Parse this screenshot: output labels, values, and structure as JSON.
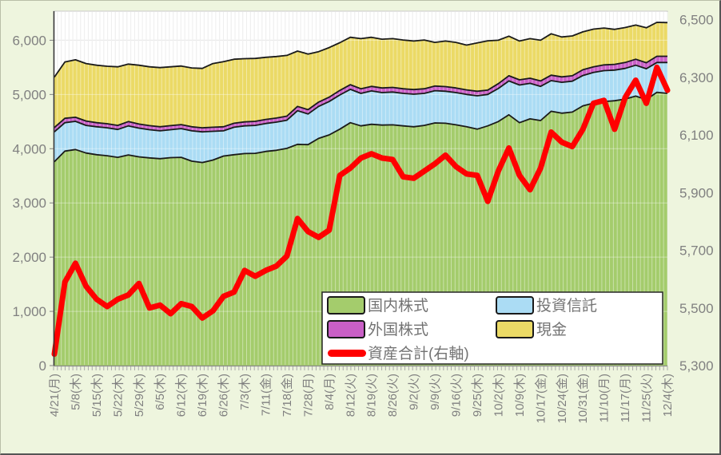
{
  "chart_data": {
    "type": "area",
    "stacked": true,
    "title": "",
    "x_labels": [
      "4/21(月)",
      "5/8(木)",
      "5/15(木)",
      "5/22(木)",
      "5/29(木)",
      "6/5(木)",
      "6/12(木)",
      "6/19(木)",
      "6/26(木)",
      "7/3(木)",
      "7/11(金)",
      "7/18(金)",
      "7/28(月)",
      "8/4(月)",
      "8/12(火)",
      "8/19(火)",
      "8/26(火)",
      "9/2(火)",
      "9/9(火)",
      "9/16(火)",
      "9/25(木)",
      "10/2(木)",
      "10/9(木)",
      "10/17(金)",
      "10/24(金)",
      "10/31(金)",
      "11/10(月)",
      "11/17(月)",
      "11/25(火)",
      "12/4(木)"
    ],
    "samples_per_label_interval": 2,
    "left_axis": {
      "min": 0,
      "max": 6500,
      "major": 1000,
      "tick_labels": [
        "0",
        "1,000",
        "2,000",
        "3,000",
        "4,000",
        "5,000",
        "6,000"
      ]
    },
    "right_axis": {
      "min": 5300,
      "max": 6500,
      "major": 200,
      "tick_labels": [
        "5,300",
        "5,500",
        "5,700",
        "5,900",
        "6,100",
        "6,300",
        "6,500"
      ]
    },
    "grid": {
      "vertical_per_day": true,
      "horizontal_at_left_major": true
    },
    "legend_position": "inside-bottom",
    "series": [
      {
        "name": "国内株式",
        "type": "area",
        "axis": "left",
        "color": "#A4CC6C",
        "values": [
          3760,
          3955,
          3985,
          3920,
          3890,
          3870,
          3840,
          3885,
          3850,
          3830,
          3815,
          3835,
          3840,
          3770,
          3745,
          3790,
          3865,
          3890,
          3910,
          3915,
          3950,
          3970,
          4005,
          4080,
          4075,
          4190,
          4255,
          4360,
          4480,
          4420,
          4450,
          4435,
          4440,
          4420,
          4405,
          4430,
          4475,
          4470,
          4440,
          4405,
          4360,
          4420,
          4500,
          4625,
          4480,
          4550,
          4520,
          4690,
          4655,
          4675,
          4790,
          4840,
          4870,
          4885,
          4915,
          4970,
          4905,
          5040,
          5020
        ]
      },
      {
        "name": "投資信託",
        "type": "area",
        "axis": "left",
        "color": "#ABDCF4",
        "values": [
          550,
          525,
          520,
          510,
          515,
          515,
          515,
          535,
          530,
          520,
          515,
          515,
          530,
          560,
          565,
          530,
          465,
          505,
          510,
          515,
          515,
          520,
          520,
          620,
          565,
          590,
          615,
          630,
          615,
          600,
          615,
          600,
          605,
          600,
          600,
          590,
          595,
          590,
          595,
          595,
          615,
          580,
          610,
          625,
          695,
          655,
          630,
          565,
          570,
          570,
          560,
          565,
          570,
          565,
          565,
          570,
          570,
          550,
          570
        ]
      },
      {
        "name": "外国株式",
        "type": "area",
        "axis": "left",
        "color": "#C95FC6",
        "values": [
          80,
          80,
          75,
          80,
          75,
          75,
          75,
          80,
          75,
          75,
          75,
          75,
          75,
          75,
          75,
          75,
          75,
          75,
          75,
          75,
          75,
          75,
          75,
          80,
          80,
          80,
          80,
          85,
          85,
          85,
          85,
          85,
          85,
          85,
          85,
          85,
          85,
          85,
          85,
          85,
          85,
          80,
          90,
          95,
          95,
          95,
          100,
          100,
          100,
          100,
          105,
          105,
          105,
          105,
          110,
          110,
          110,
          115,
          115
        ]
      },
      {
        "name": "現金",
        "type": "area",
        "axis": "left",
        "color": "#EBDA66",
        "values": [
          930,
          1040,
          1060,
          1060,
          1060,
          1060,
          1080,
          1060,
          1085,
          1085,
          1090,
          1085,
          1080,
          1085,
          1095,
          1175,
          1200,
          1180,
          1165,
          1160,
          1145,
          1135,
          1120,
          1020,
          1025,
          930,
          915,
          880,
          875,
          925,
          905,
          900,
          900,
          900,
          895,
          900,
          805,
          840,
          840,
          825,
          890,
          910,
          800,
          730,
          715,
          730,
          750,
          765,
          735,
          735,
          700,
          695,
          680,
          645,
          645,
          630,
          645,
          625,
          620
        ]
      },
      {
        "name": "資産合計(右軸)",
        "type": "line",
        "axis": "right",
        "color": "#FF0000",
        "values": [
          5340,
          5590,
          5655,
          5575,
          5530,
          5505,
          5530,
          5545,
          5585,
          5500,
          5510,
          5480,
          5515,
          5505,
          5465,
          5490,
          5540,
          5555,
          5630,
          5610,
          5630,
          5645,
          5680,
          5810,
          5765,
          5745,
          5770,
          5960,
          5985,
          6020,
          6035,
          6020,
          6015,
          5955,
          5950,
          5975,
          6000,
          6030,
          5990,
          5965,
          5960,
          5870,
          5975,
          6055,
          5960,
          5910,
          5985,
          6110,
          6075,
          6060,
          6120,
          6210,
          6220,
          6120,
          6230,
          6290,
          6210,
          6335,
          6255
        ]
      }
    ]
  },
  "legend": {
    "rows": [
      {
        "items": [
          {
            "series": 0
          },
          {
            "series": 1
          }
        ]
      },
      {
        "items": [
          {
            "series": 2
          },
          {
            "series": 3
          }
        ]
      },
      {
        "items": [
          {
            "series": 4
          }
        ]
      }
    ]
  },
  "colors": {
    "page_background": "#EEF5DE",
    "plot_background": "#FFFFFF",
    "gridline": "#D9D9D9",
    "day_stripe": "#E3E3E3",
    "axis_text": "#808080",
    "legend_text": "#737373",
    "boundary_line": "#1A1A1A",
    "total_line": "#FF0000"
  }
}
